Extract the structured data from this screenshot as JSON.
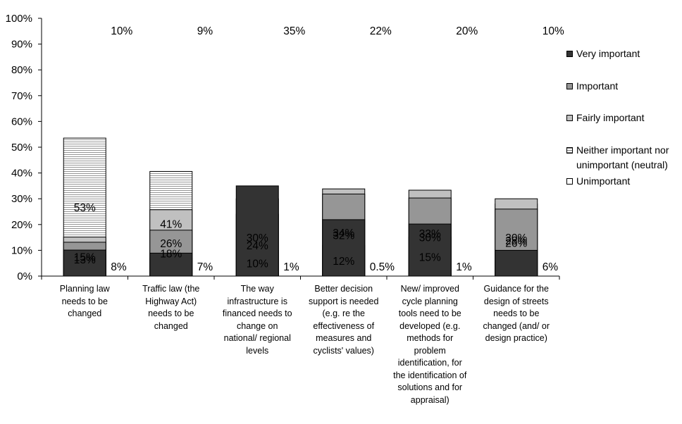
{
  "chart_data": {
    "type": "stacked-bar-100",
    "categories": [
      "Planning law needs to be changed",
      "Traffic law (the Highway Act) needs to be changed",
      "The way infrastructure is financed needs to change on national/ regional levels",
      "Better decision support is needed (e.g. re the effectiveness of measures and cyclists' values)",
      "New/ improved cycle planning tools need to be developed (e.g. methods for problem identification, for the identification of solutions and for appraisal)",
      "Guidance for the design of streets needs to be changed (and/ or design practice)"
    ],
    "category_lines": [
      [
        "Planning law",
        "needs to be",
        "changed"
      ],
      [
        "Traffic law (the",
        "Highway Act)",
        "needs to be",
        "changed"
      ],
      [
        "The way",
        "infrastructure is",
        "financed needs to",
        "change on",
        "national/ regional",
        "levels"
      ],
      [
        "Better decision",
        "support is needed",
        "(e.g. re the",
        "effectiveness of",
        "measures and",
        "cyclists' values)"
      ],
      [
        "New/ improved",
        "cycle planning",
        "tools need to be",
        "developed (e.g.",
        "methods for",
        "problem",
        "identification, for",
        "the identification of",
        "solutions and for",
        "appraisal)"
      ],
      [
        "Guidance for the",
        "design of streets",
        "needs to be",
        "changed (and/ or",
        "design practice)"
      ]
    ],
    "series": [
      {
        "name": "Unimportant",
        "pattern": "dots",
        "values": [
          8,
          7,
          1,
          0.5,
          1,
          6
        ],
        "labels": [
          "8%",
          "7%",
          "1%",
          "0.5%",
          "1%",
          "6%"
        ]
      },
      {
        "name": "Neither important nor unimportant (neutral)",
        "pattern": "hlines",
        "values": [
          53,
          41,
          10,
          12,
          15,
          28
        ],
        "labels": [
          "53%",
          "41%",
          "10%",
          "12%",
          "15%",
          "28%"
        ]
      },
      {
        "name": "Fairly important",
        "color": "#c0c0c0",
        "values": [
          15,
          26,
          24,
          34,
          33,
          30
        ],
        "labels": [
          "15%",
          "26%",
          "24%",
          "34%",
          "33%",
          "30%"
        ]
      },
      {
        "name": "Important",
        "color": "#969696",
        "values": [
          13,
          18,
          30,
          32,
          30,
          26
        ],
        "labels": [
          "13%",
          "18%",
          "30%",
          "32%",
          "30%",
          "26%"
        ]
      },
      {
        "name": "Very important",
        "color": "#333333",
        "values": [
          10,
          9,
          35,
          22,
          20,
          10
        ],
        "labels": [
          "10%",
          "9%",
          "35%",
          "22%",
          "20%",
          "10%"
        ]
      }
    ],
    "legend": [
      {
        "lines": [
          "Very important"
        ],
        "color": "#333333"
      },
      {
        "lines": [
          "Important"
        ],
        "color": "#969696"
      },
      {
        "lines": [
          "Fairly important"
        ],
        "color": "#c0c0c0"
      },
      {
        "lines": [
          "Neither important nor",
          "unimportant (neutral)"
        ],
        "pattern": "hlines"
      },
      {
        "lines": [
          "Unimportant"
        ],
        "pattern": "dots"
      }
    ],
    "y_ticks": [
      "0%",
      "10%",
      "20%",
      "30%",
      "40%",
      "50%",
      "60%",
      "70%",
      "80%",
      "90%",
      "100%"
    ],
    "ylim": [
      0,
      100
    ],
    "xlabel": "",
    "ylabel": "",
    "legend_position": "right",
    "grid": false
  }
}
